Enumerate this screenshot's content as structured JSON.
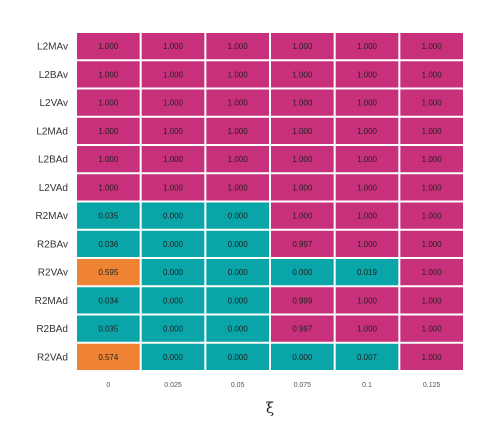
{
  "chart_data": {
    "type": "heatmap",
    "title": "",
    "xlabel": "ξ",
    "ylabel": "",
    "x": [
      "0",
      "0.025",
      "0.05",
      "0.075",
      "0.1",
      "0.125"
    ],
    "y": [
      "L2MAv",
      "L2BAv",
      "L2VAv",
      "L2MAd",
      "L2BAd",
      "L2VAd",
      "R2MAv",
      "R2BAv",
      "R2VAv",
      "R2MAd",
      "R2BAd",
      "R2VAd"
    ],
    "values": [
      [
        "1.000",
        "1.000",
        "1.000",
        "1.000",
        "1.000",
        "1.000"
      ],
      [
        "1.000",
        "1.000",
        "1.000",
        "1.000",
        "1.000",
        "1.000"
      ],
      [
        "1.000",
        "1.000",
        "1.000",
        "1.000",
        "1.000",
        "1.000"
      ],
      [
        "1.000",
        "1.000",
        "1.000",
        "1.000",
        "1.000",
        "1.000"
      ],
      [
        "1.000",
        "1.000",
        "1.000",
        "1.000",
        "1.000",
        "1.000"
      ],
      [
        "1.000",
        "1.000",
        "1.000",
        "1.000",
        "1.000",
        "1.000"
      ],
      [
        "0.035",
        "0.000",
        "0.000",
        "1.000",
        "1.000",
        "1.000"
      ],
      [
        "0.036",
        "0.000",
        "0.000",
        "0.997",
        "1.000",
        "1.000"
      ],
      [
        "0.595",
        "0.000",
        "0.000",
        "0.000",
        "0.019",
        "1.000"
      ],
      [
        "0.034",
        "0.000",
        "0.000",
        "0.999",
        "1.000",
        "1.000"
      ],
      [
        "0.035",
        "0.000",
        "0.000",
        "0.997",
        "1.000",
        "1.000"
      ],
      [
        "0.574",
        "0.000",
        "0.000",
        "0.000",
        "0.007",
        "1.000"
      ]
    ],
    "colors": {
      "high": "#c9307b",
      "low": "#0aa5a8",
      "mid": "#ee8433"
    },
    "legend": "none",
    "grid": false
  }
}
